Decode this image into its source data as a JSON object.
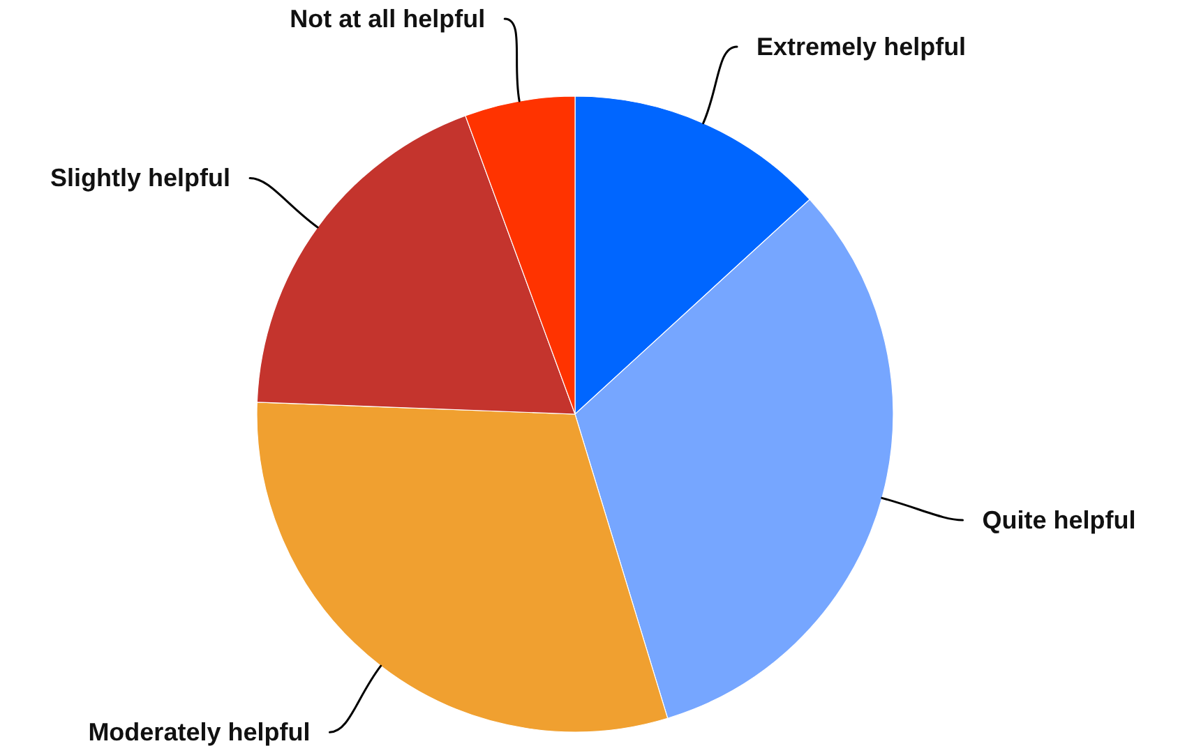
{
  "chart_data": {
    "type": "pie",
    "categories": [
      "Extremely helpful",
      "Quite helpful",
      "Moderately helpful",
      "Slightly helpful",
      "Not at all helpful"
    ],
    "values": [
      13.2,
      32.1,
      30.3,
      18.8,
      5.6
    ],
    "colors": [
      "#0066ff",
      "#76a6ff",
      "#f0a030",
      "#c4342d",
      "#ff3300"
    ]
  }
}
